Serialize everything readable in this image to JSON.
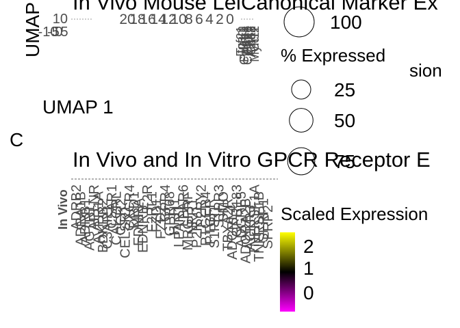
{
  "panel_c_label": "C",
  "chart_data": [
    {
      "type": "scatter",
      "title": "In Vivo Mouse Lei",
      "xlabel": "UMAP 1",
      "ylabel": "UMAP",
      "x_ticks": [
        "-10",
        "-5",
        "0",
        "5"
      ],
      "y_ticks": [
        "10"
      ],
      "legend_title": "",
      "legend": []
    },
    {
      "type": "dot",
      "title": "Canonical Marker Ex",
      "x_ticks": [
        "20",
        "18",
        "16",
        "14",
        "12",
        "10",
        "8",
        "6",
        "4",
        "2",
        "0"
      ],
      "y_tick_labels": [
        "Tcf21",
        "Pdgfra",
        "Ptprc",
        "Cd68",
        "Ccr2",
        "Itgam",
        "Col1a1",
        "Col4a1",
        "Acta2",
        "Myh11"
      ],
      "legend_title_hidden": "Average Expression",
      "legend_title_visible_fragment": "sion",
      "size_legend": {
        "title": "% Expressed",
        "entries": [
          {
            "label": "100",
            "value": 100
          },
          {
            "label": "25",
            "value": 25
          },
          {
            "label": "50",
            "value": 50
          },
          {
            "label": "75",
            "value": 75
          }
        ]
      }
    },
    {
      "type": "heatmap",
      "title": "In Vivo and In Vitro GPCR Receptor E",
      "row_label": "In Vivo",
      "colorbar": {
        "title": "Scaled Expression",
        "ticks": [
          "2",
          "1",
          "0"
        ],
        "colors": [
          "#ffff00",
          "#000000",
          "#ff00ff"
        ]
      },
      "columns": [
        "ADRB2",
        "ADRA1B",
        "ADRB1",
        "AGTR1",
        "APLNR",
        "AVPR1A",
        "BDKRB2",
        "C3AR1",
        "C5AR1",
        "CALCRL",
        "CCR2",
        "CELSR1",
        "CXCR4",
        "DRD1",
        "EDNRA",
        "EDNRB",
        "F2R",
        "F2RL1",
        "FZD1",
        "FZD2",
        "GPR4",
        "GPR68",
        "HRH1",
        "LPAR1",
        "LPAR6",
        "MRGPRF",
        "NPR1",
        "P2RY1",
        "P2RY2",
        "PTGER4",
        "PTGFR",
        "S1PR1",
        "S1PR3",
        "SMO",
        "TBXA2R",
        "ADGRL4",
        "GPR183",
        "ADGRE5",
        "ADORA2B",
        "ACKR3",
        "TNFRSF1A",
        "TNFRSF1B",
        "SFRP1",
        "SFRP2"
      ]
    }
  ]
}
